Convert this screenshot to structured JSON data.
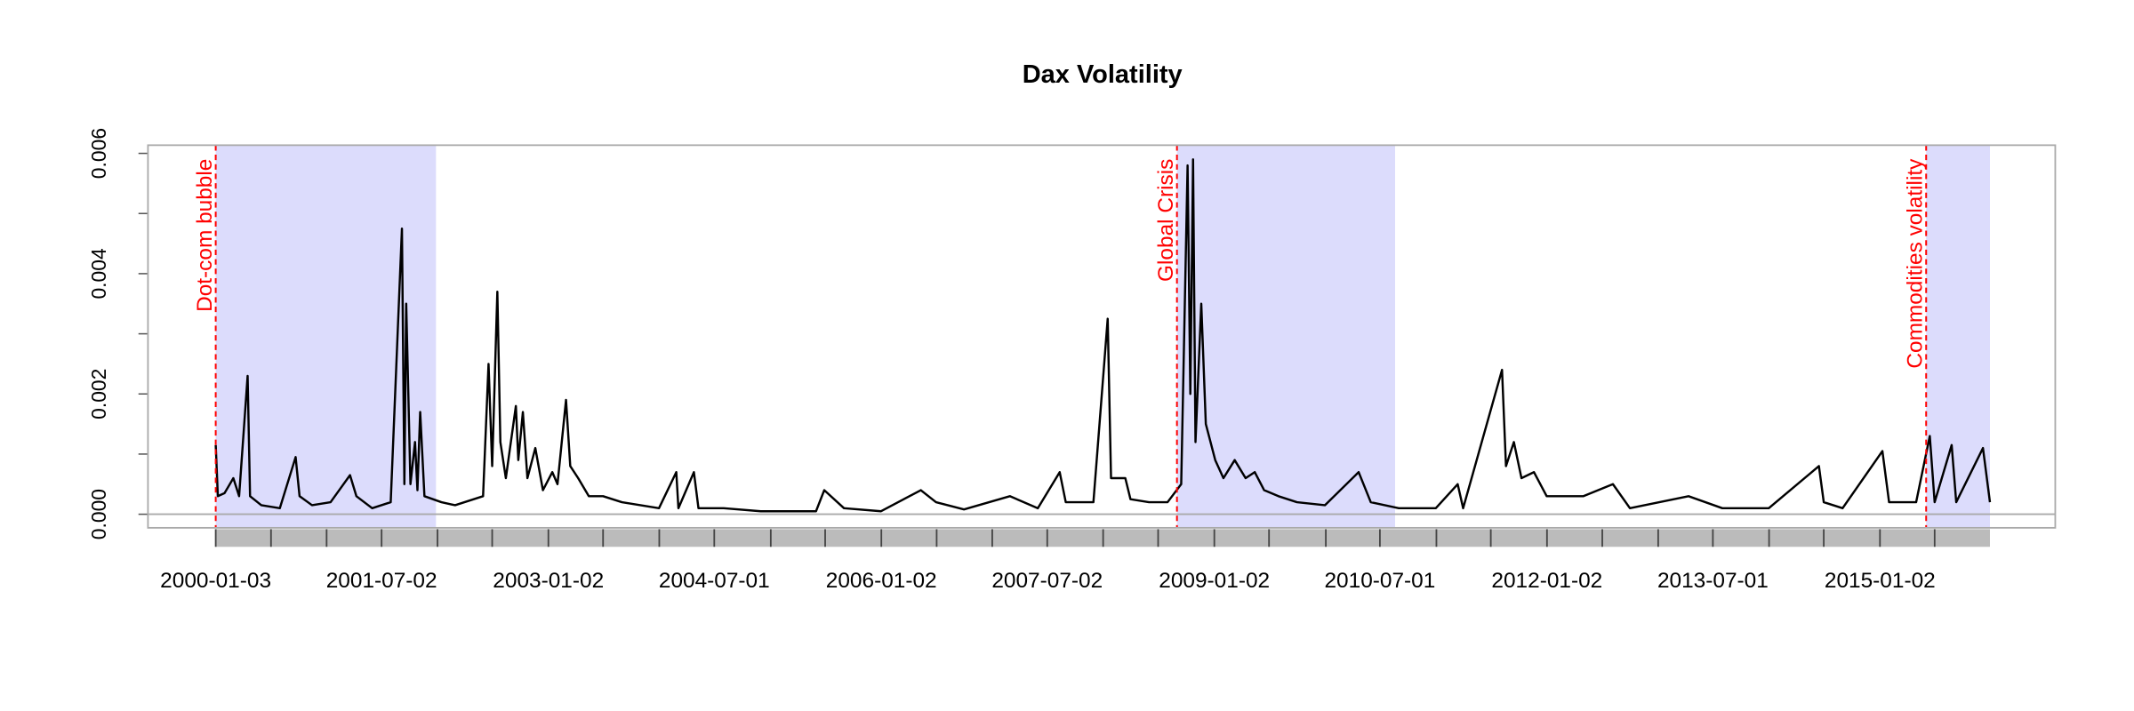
{
  "chart_data": {
    "type": "line",
    "title": "Dax Volatility",
    "x": [
      "2000-01-03",
      "2000-01-10",
      "2000-02-01",
      "2000-03-01",
      "2000-03-20",
      "2000-04-17",
      "2000-04-25",
      "2000-06-01",
      "2000-08-01",
      "2000-09-22",
      "2000-10-05",
      "2000-11-15",
      "2001-01-15",
      "2001-03-20",
      "2001-04-10",
      "2001-06-01",
      "2001-08-01",
      "2001-09-07",
      "2001-09-15",
      "2001-09-21",
      "2001-10-05",
      "2001-10-20",
      "2001-10-28",
      "2001-11-06",
      "2001-11-20",
      "2002-01-15",
      "2002-03-01",
      "2002-06-01",
      "2002-06-19",
      "2002-07-01",
      "2002-07-18",
      "2002-07-28",
      "2002-08-15",
      "2002-09-17",
      "2002-09-25",
      "2002-10-10",
      "2002-10-25",
      "2002-11-20",
      "2002-12-15",
      "2003-01-15",
      "2003-02-01",
      "2003-03-01",
      "2003-03-15",
      "2003-04-10",
      "2003-05-15",
      "2003-07-01",
      "2003-09-01",
      "2003-11-01",
      "2004-01-01",
      "2004-02-27",
      "2004-03-05",
      "2004-04-25",
      "2004-05-10",
      "2004-08-01",
      "2004-12-01",
      "2005-06-01",
      "2005-06-28",
      "2005-09-01",
      "2006-01-01",
      "2006-05-12",
      "2006-07-01",
      "2006-10-01",
      "2007-03-01",
      "2007-06-01",
      "2007-08-12",
      "2007-09-01",
      "2007-12-01",
      "2008-01-17",
      "2008-01-28",
      "2008-03-15",
      "2008-04-01",
      "2008-06-01",
      "2008-08-01",
      "2008-09-15",
      "2008-10-06",
      "2008-10-15",
      "2008-10-24",
      "2008-11-01",
      "2008-11-20",
      "2008-12-05",
      "2009-01-05",
      "2009-02-01",
      "2009-03-10",
      "2009-04-15",
      "2009-05-15",
      "2009-06-15",
      "2009-08-01",
      "2009-10-01",
      "2010-01-01",
      "2010-04-22",
      "2010-06-01",
      "2010-09-01",
      "2011-01-01",
      "2011-03-14",
      "2011-04-01",
      "2011-08-07",
      "2011-08-20",
      "2011-09-15",
      "2011-10-10",
      "2011-11-20",
      "2012-01-01",
      "2012-05-01",
      "2012-08-06",
      "2012-10-01",
      "2013-04-12",
      "2013-08-01",
      "2014-01-01",
      "2014-06-15",
      "2014-07-01",
      "2014-09-01",
      "2015-01-10",
      "2015-02-01",
      "2015-05-01",
      "2015-06-15",
      "2015-07-01",
      "2015-08-26",
      "2015-09-10",
      "2015-12-07",
      "2015-12-30"
    ],
    "series": [
      {
        "color": "#000000",
        "values": [
          0.00115,
          0.0003,
          0.00035,
          0.0006,
          0.0003,
          0.0023,
          0.0003,
          0.00015,
          0.0001,
          0.00095,
          0.0003,
          0.00015,
          0.0002,
          0.00065,
          0.0003,
          0.0001,
          0.0002,
          0.00475,
          0.0005,
          0.0035,
          0.0005,
          0.0012,
          0.0004,
          0.0017,
          0.0003,
          0.0002,
          0.00015,
          0.0003,
          0.0025,
          0.0008,
          0.0037,
          0.0012,
          0.0006,
          0.0018,
          0.0009,
          0.0017,
          0.0006,
          0.0011,
          0.0004,
          0.0007,
          0.0005,
          0.0019,
          0.0008,
          0.0006,
          0.0003,
          0.0003,
          0.0002,
          0.00015,
          0.0001,
          0.0007,
          0.0001,
          0.0007,
          0.0001,
          0.0001,
          5e-05,
          5e-05,
          0.0004,
          0.0001,
          5e-05,
          0.0004,
          0.0002,
          8e-05,
          0.0003,
          0.0001,
          0.0007,
          0.0002,
          0.0002,
          0.00325,
          0.0006,
          0.0006,
          0.00025,
          0.0002,
          0.0002,
          0.0005,
          0.0058,
          0.002,
          0.0059,
          0.0012,
          0.0035,
          0.0015,
          0.0009,
          0.0006,
          0.0009,
          0.0006,
          0.0007,
          0.0004,
          0.0003,
          0.0002,
          0.00015,
          0.0007,
          0.0002,
          0.0001,
          0.0001,
          0.0005,
          0.0001,
          0.0024,
          0.0008,
          0.0012,
          0.0006,
          0.0007,
          0.0003,
          0.0003,
          0.0005,
          0.0001,
          0.0003,
          0.0001,
          0.0001,
          0.0008,
          0.0002,
          0.0001,
          0.00105,
          0.0002,
          0.0002,
          0.0013,
          0.0002,
          0.00115,
          0.0002,
          0.0011,
          0.0002
        ]
      }
    ],
    "xlim": [
      "1999-05-25",
      "2016-08-01"
    ],
    "xticks": [
      "2000-01-03",
      "2001-07-02",
      "2003-01-02",
      "2004-07-01",
      "2006-01-02",
      "2007-07-02",
      "2009-01-02",
      "2010-07-01",
      "2012-01-02",
      "2013-07-01",
      "2015-01-02"
    ],
    "xminorticks": [
      "2000-07-03",
      "2001-01-02",
      "2002-01-02",
      "2002-07-01",
      "2003-07-01",
      "2004-01-02",
      "2005-01-03",
      "2005-07-01",
      "2006-07-03",
      "2007-01-02",
      "2008-01-02",
      "2008-07-01",
      "2009-07-01",
      "2010-01-04",
      "2011-01-03",
      "2011-07-01",
      "2012-07-02",
      "2013-01-02",
      "2014-01-02",
      "2014-07-01",
      "2015-07-01"
    ],
    "ylim": [
      -0.000226,
      0.006136
    ],
    "yticks": [
      {
        "value": 0,
        "label": "0.000"
      },
      {
        "value": 0.002,
        "label": "0.002"
      },
      {
        "value": 0.004,
        "label": "0.004"
      },
      {
        "value": 0.006,
        "label": "0.006"
      }
    ],
    "yminorticks": [
      0.001,
      0.003,
      0.005
    ],
    "hline": 0,
    "annotations": [
      {
        "label": "Dot-com bubble",
        "start": "2000-01-03",
        "end": "2001-12-28"
      },
      {
        "label": "Global Crisis",
        "start": "2008-09-01",
        "end": "2010-08-20"
      },
      {
        "label": "Commodities volatility",
        "start": "2015-06-03",
        "end": "2015-12-30"
      }
    ],
    "shade_color": "#dcdcfc",
    "annotation_color": "#ff0000"
  }
}
